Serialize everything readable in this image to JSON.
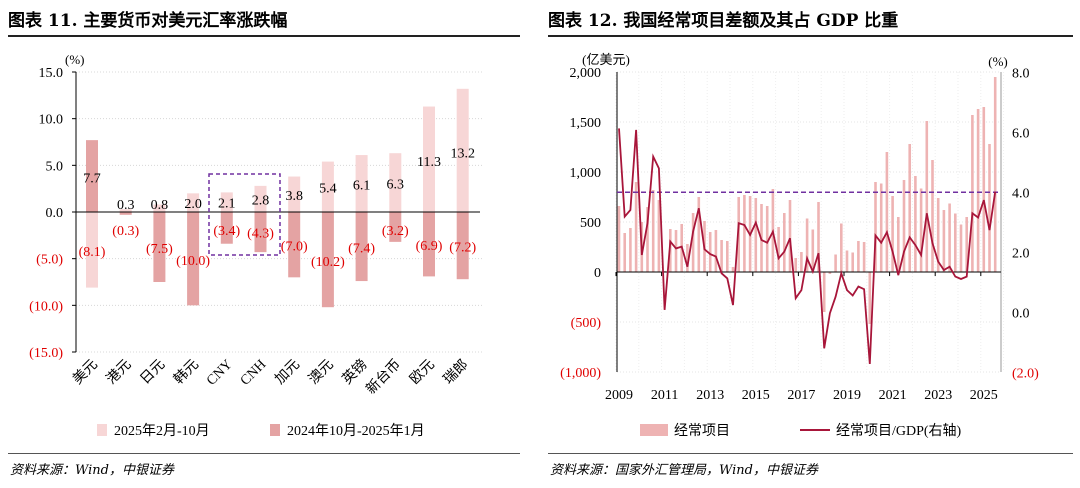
{
  "left": {
    "title": "图表 11. 主要货币对美元汇率涨跌幅",
    "source": "资料来源：Wind，中银证券"
  },
  "right": {
    "title": "图表 12. 我国经常项目差额及其占 GDP 比重",
    "source": "资料来源：国家外汇管理局，Wind，中银证券"
  },
  "colors": {
    "light_bar": "#f7d6d6",
    "dark_bar": "#e4a3a3",
    "ca_bar": "#eeb3b3",
    "line": "#a8163a",
    "highlight_box": "#7030a0",
    "negative_label": "#e00000"
  },
  "chart_data": [
    {
      "type": "bar",
      "title": "",
      "ylabel": "(%)",
      "ylim": [
        -15,
        15
      ],
      "yticks": [
        "15.0",
        "10.0",
        "5.0",
        "0.0",
        "(5.0)",
        "(10.0)",
        "(15.0)"
      ],
      "grid": true,
      "legend_position": "bottom",
      "categories": [
        "美元",
        "港元",
        "日元",
        "韩元",
        "CNY",
        "CNH",
        "加元",
        "澳元",
        "英镑",
        "新台币",
        "欧元",
        "瑞郎"
      ],
      "highlighted_categories": [
        "CNY",
        "CNH"
      ],
      "series": [
        {
          "name": "2025年2月-10月",
          "values": [
            -8.1,
            0.3,
            0.8,
            2.0,
            2.1,
            2.8,
            3.8,
            5.4,
            6.1,
            6.3,
            11.3,
            13.2
          ],
          "labels": [
            "(8.1)",
            "0.3",
            "0.8",
            "2.0",
            "2.1",
            "2.8",
            "3.8",
            "5.4",
            "6.1",
            "6.3",
            "11.3",
            "13.2"
          ]
        },
        {
          "name": "2024年10月-2025年1月",
          "values": [
            7.7,
            -0.3,
            -7.5,
            -10.0,
            -3.4,
            -4.3,
            -7.0,
            -10.2,
            -7.4,
            -3.2,
            -6.9,
            -7.2
          ],
          "labels": [
            "7.7",
            "(0.3)",
            "(7.5)",
            "(10.0)",
            "(3.4)",
            "(4.3)",
            "(7.0)",
            "(10.2)",
            "(7.4)",
            "(3.2)",
            "(6.9)",
            "(7.2)"
          ]
        }
      ]
    },
    {
      "type": "bar+line",
      "title": "",
      "ylabel_left": "(亿美元)",
      "ylabel_right": "(%)",
      "ylim_left": [
        -1000,
        2000
      ],
      "ylim_right": [
        -2,
        8
      ],
      "yticks_left": [
        "2,000",
        "1,500",
        "1,000",
        "500",
        "0",
        "(500)",
        "(1,000)"
      ],
      "yticks_right": [
        "8.0",
        "6.0",
        "4.0",
        "2.0",
        "0.0",
        "(2.0)"
      ],
      "xticks": [
        "2009",
        "2011",
        "2013",
        "2015",
        "2017",
        "2019",
        "2021",
        "2023",
        "2025"
      ],
      "x_range": [
        "2009Q1",
        "2025Q3"
      ],
      "grid": true,
      "legend_position": "bottom",
      "reference_line_right_axis": 4.0,
      "series": [
        {
          "name": "经常项目",
          "axis": "left",
          "type": "bar",
          "values": [
            660,
            390,
            440,
            900,
            500,
            650,
            820,
            720,
            10,
            430,
            420,
            480,
            280,
            590,
            750,
            510,
            400,
            420,
            320,
            310,
            50,
            750,
            770,
            760,
            740,
            680,
            660,
            830,
            450,
            590,
            720,
            140,
            200,
            535,
            425,
            700,
            -400,
            -20,
            175,
            485,
            215,
            195,
            310,
            300,
            -520,
            900,
            885,
            1200,
            760,
            550,
            920,
            1280,
            960,
            835,
            1510,
            1120,
            740,
            620,
            685,
            585,
            475,
            550,
            1570,
            1630,
            1650,
            1280,
            1950
          ]
        },
        {
          "name": "经常项目/GDP(右轴)",
          "axis": "right",
          "type": "line",
          "values": [
            6.13,
            3.19,
            3.41,
            6.08,
            1.91,
            2.97,
            5.19,
            4.8,
            0.08,
            2.36,
            2.13,
            2.19,
            1.52,
            2.69,
            3.47,
            2.1,
            1.94,
            1.86,
            1.3,
            1.13,
            0.24,
            2.97,
            2.91,
            2.58,
            2.99,
            2.41,
            2.32,
            2.69,
            1.8,
            2.02,
            2.47,
            0.47,
            0.74,
            1.8,
            1.36,
            1.97,
            -1.2,
            -0.03,
            0.52,
            1.3,
            0.74,
            0.56,
            0.86,
            0.77,
            -1.72,
            2.56,
            2.32,
            2.67,
            2.02,
            1.24,
            2.02,
            2.5,
            2.24,
            1.91,
            3.3,
            2.3,
            1.69,
            1.41,
            1.52,
            1.19,
            1.11,
            1.19,
            3.3,
            3.16,
            3.74,
            2.74,
            4.02
          ]
        }
      ]
    }
  ]
}
